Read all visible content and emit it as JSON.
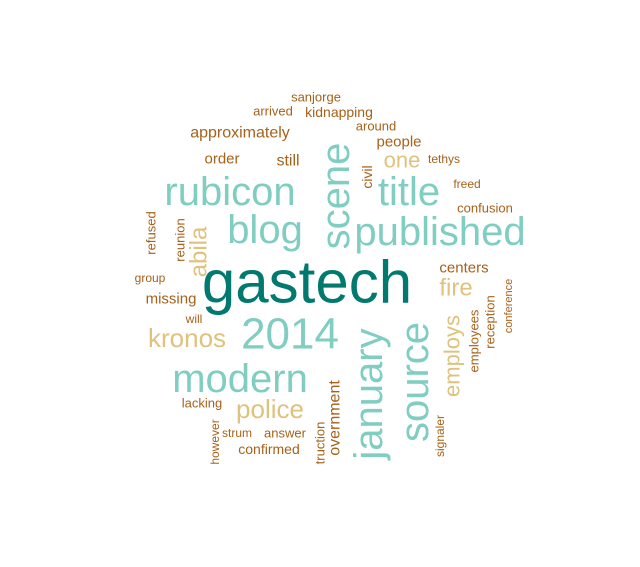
{
  "chart_data": {
    "type": "wordcloud",
    "palette": {
      "teal-dark": "#01796f",
      "teal-light": "#80cdc1",
      "tan": "#dfc27d",
      "brown": "#a6611a"
    },
    "words": [
      {
        "text": "gastech",
        "color": "teal-dark",
        "rotate": false
      },
      {
        "text": "published",
        "color": "teal-light",
        "rotate": false
      },
      {
        "text": "rubicon",
        "color": "teal-light",
        "rotate": false
      },
      {
        "text": "blog",
        "color": "teal-light",
        "rotate": false
      },
      {
        "text": "title",
        "color": "teal-light",
        "rotate": false
      },
      {
        "text": "scene",
        "color": "teal-light",
        "rotate": true
      },
      {
        "text": "2014",
        "color": "teal-light",
        "rotate": false
      },
      {
        "text": "modern",
        "color": "teal-light",
        "rotate": false
      },
      {
        "text": "january",
        "color": "teal-light",
        "rotate": true
      },
      {
        "text": "source",
        "color": "teal-light",
        "rotate": true
      },
      {
        "text": "kronos",
        "color": "tan",
        "rotate": false
      },
      {
        "text": "police",
        "color": "tan",
        "rotate": false
      },
      {
        "text": "fire",
        "color": "tan",
        "rotate": false
      },
      {
        "text": "one",
        "color": "tan",
        "rotate": false
      },
      {
        "text": "abila",
        "color": "tan",
        "rotate": true
      },
      {
        "text": "employs",
        "color": "tan",
        "rotate": true
      },
      {
        "text": "approximately",
        "color": "brown",
        "rotate": false
      },
      {
        "text": "order",
        "color": "brown",
        "rotate": false
      },
      {
        "text": "still",
        "color": "brown",
        "rotate": false
      },
      {
        "text": "people",
        "color": "brown",
        "rotate": false
      },
      {
        "text": "kidnapping",
        "color": "brown",
        "rotate": false
      },
      {
        "text": "sanjorge",
        "color": "brown",
        "rotate": false
      },
      {
        "text": "arrived",
        "color": "brown",
        "rotate": false
      },
      {
        "text": "around",
        "color": "brown",
        "rotate": false
      },
      {
        "text": "tethys",
        "color": "brown",
        "rotate": false
      },
      {
        "text": "civil",
        "color": "brown",
        "rotate": true
      },
      {
        "text": "freed",
        "color": "brown",
        "rotate": false
      },
      {
        "text": "confusion",
        "color": "brown",
        "rotate": false
      },
      {
        "text": "centers",
        "color": "brown",
        "rotate": false
      },
      {
        "text": "missing",
        "color": "brown",
        "rotate": false
      },
      {
        "text": "group",
        "color": "brown",
        "rotate": false
      },
      {
        "text": "will",
        "color": "brown",
        "rotate": false
      },
      {
        "text": "refused",
        "color": "brown",
        "rotate": true
      },
      {
        "text": "reunion",
        "color": "brown",
        "rotate": true
      },
      {
        "text": "lacking",
        "color": "brown",
        "rotate": false
      },
      {
        "text": "however",
        "color": "brown",
        "rotate": true
      },
      {
        "text": "strum",
        "color": "brown",
        "rotate": false
      },
      {
        "text": "answer",
        "color": "brown",
        "rotate": false
      },
      {
        "text": "confirmed",
        "color": "brown",
        "rotate": false
      },
      {
        "text": "truction",
        "color": "brown",
        "rotate": true
      },
      {
        "text": "overnment",
        "color": "brown",
        "rotate": true
      },
      {
        "text": "signaler",
        "color": "brown",
        "rotate": true
      },
      {
        "text": "employees",
        "color": "brown",
        "rotate": true
      },
      {
        "text": "reception",
        "color": "brown",
        "rotate": true
      },
      {
        "text": "conference",
        "color": "brown",
        "rotate": true
      }
    ]
  }
}
